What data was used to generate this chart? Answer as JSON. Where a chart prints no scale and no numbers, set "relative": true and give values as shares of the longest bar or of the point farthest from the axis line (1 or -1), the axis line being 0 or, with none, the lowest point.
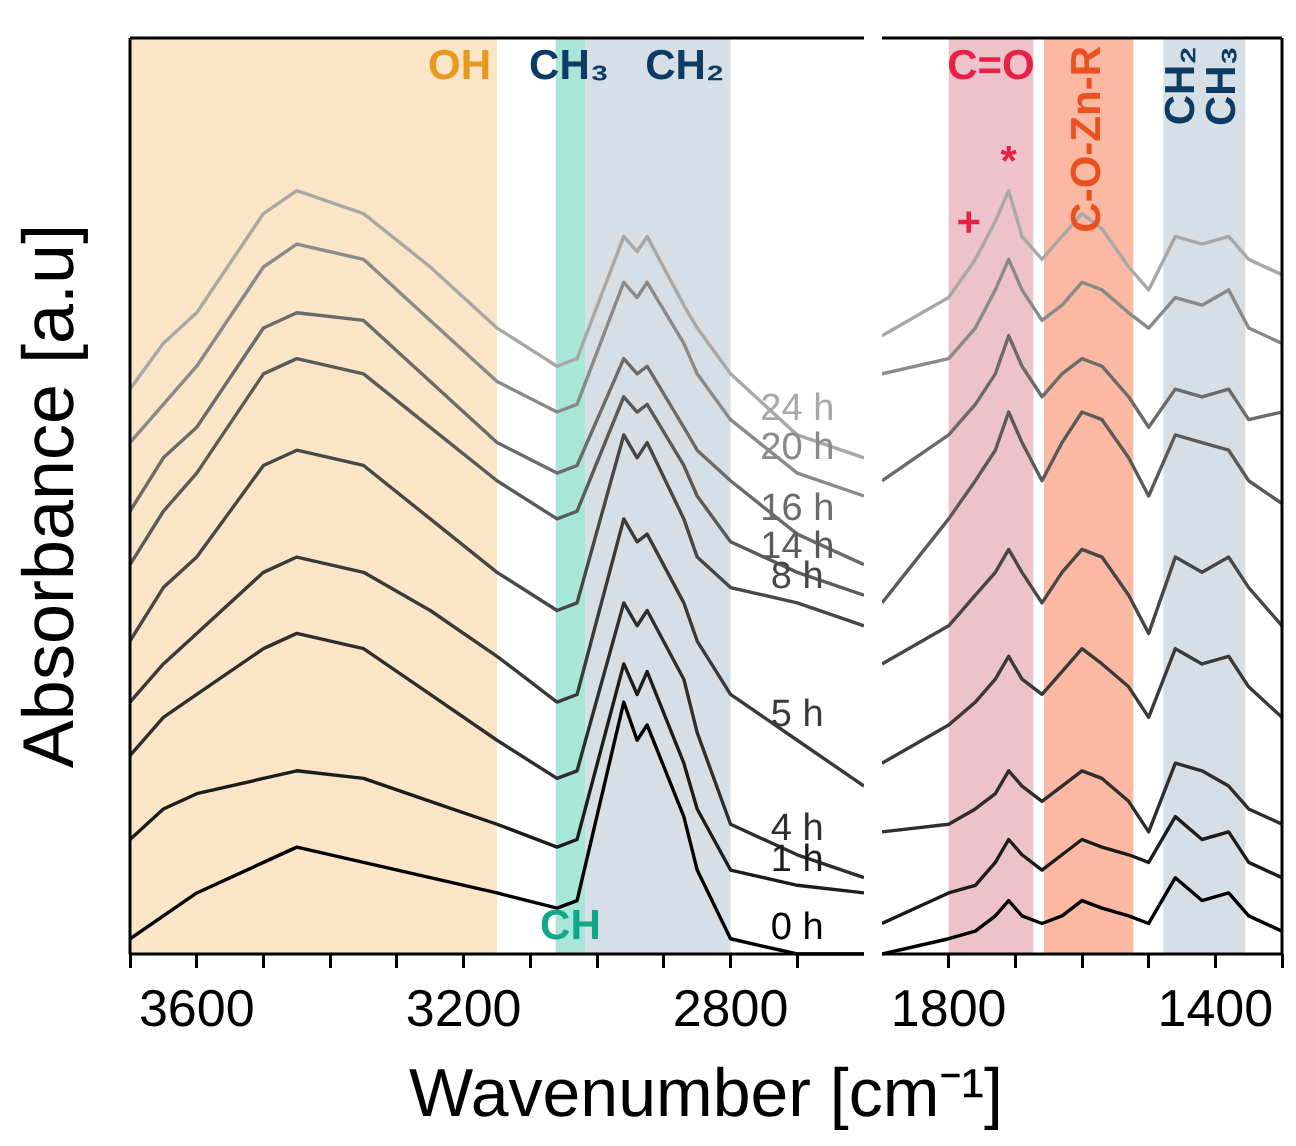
{
  "chart_data": [
    {
      "type": "line",
      "relative": true,
      "ylabel": "Absorbance [a.u]",
      "xlabel": "Wavenumber [cm⁻¹]",
      "tick_labels": "x",
      "legend": false,
      "marker": "none",
      "line_style": "solid",
      "xlim": [
        3700,
        2600
      ],
      "xticks": [
        {
          "value": 3700,
          "label": null
        },
        3600,
        {
          "value": 3500,
          "label": null
        },
        {
          "value": 3400,
          "label": null
        },
        {
          "value": 3300,
          "label": null
        },
        3200,
        {
          "value": 3100,
          "label": null
        },
        {
          "value": 3000,
          "label": null
        },
        {
          "value": 2900,
          "label": null
        },
        2800,
        {
          "value": 2700,
          "label": null
        }
      ],
      "x": [
        3700,
        3650,
        3600,
        3500,
        3450,
        3350,
        3250,
        3150,
        3060,
        3030,
        2960,
        2940,
        2925,
        2870,
        2850,
        2800,
        2700,
        2600
      ],
      "series": [
        {
          "name": "0 h",
          "color": "#000000",
          "values": [
            0.02,
            0.05,
            0.08,
            0.12,
            0.14,
            0.12,
            0.1,
            0.08,
            0.06,
            0.07,
            0.33,
            0.28,
            0.3,
            0.18,
            0.11,
            0.02,
            0.0,
            0.0
          ]
        },
        {
          "name": "1 h",
          "color": "#1c1c1c",
          "values": [
            0.15,
            0.19,
            0.21,
            0.23,
            0.24,
            0.23,
            0.2,
            0.17,
            0.14,
            0.15,
            0.38,
            0.34,
            0.37,
            0.25,
            0.19,
            0.11,
            0.09,
            0.08
          ]
        },
        {
          "name": "4 h",
          "color": "#2e2e2e",
          "values": [
            0.26,
            0.31,
            0.34,
            0.4,
            0.42,
            0.4,
            0.34,
            0.28,
            0.23,
            0.24,
            0.46,
            0.43,
            0.45,
            0.36,
            0.29,
            0.17,
            0.13,
            0.1
          ]
        },
        {
          "name": "5 h",
          "color": "#3a3a3a",
          "values": [
            0.33,
            0.38,
            0.42,
            0.5,
            0.52,
            0.5,
            0.45,
            0.39,
            0.33,
            0.34,
            0.57,
            0.54,
            0.55,
            0.46,
            0.41,
            0.34,
            0.28,
            0.22
          ]
        },
        {
          "name": "8 h",
          "color": "#474747",
          "values": [
            0.41,
            0.48,
            0.52,
            0.64,
            0.66,
            0.64,
            0.57,
            0.5,
            0.45,
            0.46,
            0.68,
            0.65,
            0.67,
            0.57,
            0.52,
            0.48,
            0.46,
            0.43
          ]
        },
        {
          "name": "14 h",
          "color": "#5a5a5a",
          "values": [
            0.51,
            0.58,
            0.63,
            0.76,
            0.78,
            0.76,
            0.69,
            0.62,
            0.57,
            0.58,
            0.73,
            0.71,
            0.72,
            0.64,
            0.6,
            0.54,
            0.5,
            0.47
          ]
        },
        {
          "name": "16 h",
          "color": "#6b6b6b",
          "values": [
            0.58,
            0.65,
            0.69,
            0.82,
            0.84,
            0.83,
            0.75,
            0.67,
            0.63,
            0.64,
            0.78,
            0.76,
            0.77,
            0.69,
            0.66,
            0.62,
            0.55,
            0.51
          ]
        },
        {
          "name": "20 h",
          "color": "#8a8a8a",
          "values": [
            0.67,
            0.72,
            0.77,
            0.9,
            0.93,
            0.91,
            0.83,
            0.75,
            0.71,
            0.72,
            0.88,
            0.86,
            0.88,
            0.8,
            0.76,
            0.7,
            0.63,
            0.6
          ]
        },
        {
          "name": "24 h",
          "color": "#a8a8a8",
          "values": [
            0.74,
            0.8,
            0.84,
            0.97,
            1.0,
            0.97,
            0.9,
            0.82,
            0.77,
            0.78,
            0.94,
            0.92,
            0.94,
            0.85,
            0.82,
            0.76,
            0.68,
            0.65
          ]
        }
      ],
      "bands": [
        {
          "axis": "x",
          "from": 3700,
          "to": 3150,
          "label": "OH",
          "color": "#fae5c6"
        },
        {
          "axis": "x",
          "from": 3062,
          "to": 3018,
          "label": "CH",
          "color": "#a8e6d9"
        },
        {
          "axis": "x",
          "from": 3018,
          "to": 2800,
          "label": "CH₂",
          "color": "#d7dfe6"
        }
      ],
      "annotations": [
        "CH₃"
      ]
    },
    {
      "type": "line",
      "relative": true,
      "tick_labels": "x",
      "legend": false,
      "marker": "none",
      "line_style": "solid",
      "xlim": [
        1900,
        1300
      ],
      "xticks": [
        1800,
        {
          "value": 1700,
          "label": null
        },
        {
          "value": 1600,
          "label": null
        },
        {
          "value": 1500,
          "label": null
        },
        1400,
        {
          "value": 1300,
          "label": null
        }
      ],
      "x": [
        1900,
        1800,
        1760,
        1730,
        1710,
        1690,
        1660,
        1630,
        1600,
        1570,
        1530,
        1500,
        1460,
        1420,
        1380,
        1350,
        1300
      ],
      "series": [
        {
          "color": "#000000",
          "values": [
            0.0,
            0.02,
            0.03,
            0.05,
            0.07,
            0.05,
            0.04,
            0.05,
            0.07,
            0.06,
            0.05,
            0.04,
            0.1,
            0.07,
            0.08,
            0.05,
            0.03
          ]
        },
        {
          "color": "#1c1c1c",
          "values": [
            0.04,
            0.08,
            0.09,
            0.12,
            0.15,
            0.13,
            0.11,
            0.13,
            0.15,
            0.14,
            0.13,
            0.12,
            0.18,
            0.15,
            0.16,
            0.12,
            0.1
          ]
        },
        {
          "color": "#2e2e2e",
          "values": [
            0.16,
            0.17,
            0.19,
            0.21,
            0.24,
            0.22,
            0.2,
            0.22,
            0.24,
            0.23,
            0.2,
            0.16,
            0.25,
            0.24,
            0.22,
            0.19,
            0.17
          ]
        },
        {
          "color": "#3a3a3a",
          "values": [
            0.25,
            0.3,
            0.33,
            0.36,
            0.39,
            0.36,
            0.34,
            0.37,
            0.4,
            0.38,
            0.35,
            0.31,
            0.4,
            0.38,
            0.39,
            0.35,
            0.31
          ]
        },
        {
          "color": "#474747",
          "values": [
            0.38,
            0.43,
            0.47,
            0.5,
            0.53,
            0.5,
            0.46,
            0.5,
            0.53,
            0.52,
            0.47,
            0.42,
            0.52,
            0.5,
            0.52,
            0.48,
            0.43
          ]
        },
        {
          "color": "#5a5a5a",
          "values": [
            0.46,
            0.57,
            0.62,
            0.66,
            0.71,
            0.67,
            0.62,
            0.67,
            0.71,
            0.7,
            0.65,
            0.6,
            0.68,
            0.67,
            0.66,
            0.62,
            0.59
          ]
        },
        {
          "color": "#6b6b6b",
          "values": [
            0.62,
            0.68,
            0.72,
            0.76,
            0.81,
            0.77,
            0.73,
            0.76,
            0.78,
            0.77,
            0.73,
            0.69,
            0.74,
            0.73,
            0.74,
            0.7,
            0.71
          ]
        },
        {
          "color": "#8a8a8a",
          "values": [
            0.76,
            0.78,
            0.82,
            0.87,
            0.91,
            0.87,
            0.83,
            0.85,
            0.88,
            0.87,
            0.84,
            0.82,
            0.86,
            0.85,
            0.87,
            0.82,
            0.8
          ]
        },
        {
          "color": "#a8a8a8",
          "values": [
            0.81,
            0.86,
            0.91,
            0.96,
            1.0,
            0.94,
            0.91,
            0.94,
            0.97,
            0.95,
            0.9,
            0.87,
            0.94,
            0.93,
            0.94,
            0.91,
            0.89
          ]
        }
      ],
      "bands": [
        {
          "axis": "x",
          "from": 1800,
          "to": 1673,
          "label": "C=O",
          "color": "#edc2ca"
        },
        {
          "axis": "x",
          "from": 1657,
          "to": 1523,
          "label": "C-O-Zn-R",
          "color": "#fbb8a2"
        },
        {
          "axis": "x",
          "from": 1478,
          "to": 1420,
          "label": "CH₂",
          "color": "#d7dfe6"
        },
        {
          "axis": "x",
          "from": 1420,
          "to": 1355,
          "label": "CH₃",
          "color": "#d7dfe6"
        }
      ],
      "annotations": [
        {
          "text": "+",
          "x": 1770,
          "y": 0.92
        },
        {
          "text": "*",
          "x": 1710,
          "y": 1.0
        }
      ]
    }
  ]
}
